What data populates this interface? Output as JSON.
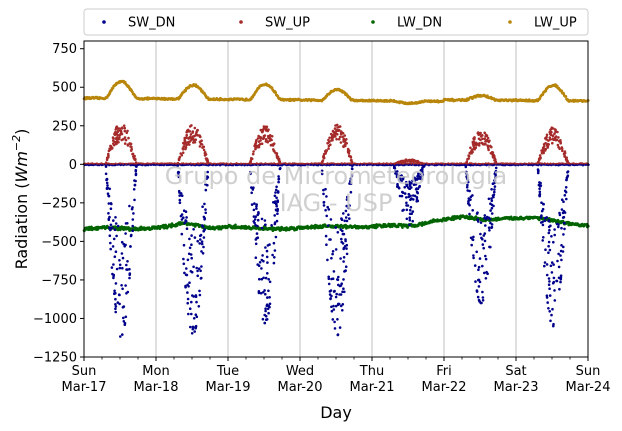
{
  "chart_data": {
    "type": "scatter",
    "watermark_lines": [
      "Grupo de Micrometeorologia",
      "IAG - USP"
    ],
    "xlabel": "Day",
    "ylabel_main": "Radiation (",
    "ylabel_unit_base": "Wm",
    "ylabel_unit_exp": "−2",
    "ylabel_close": ")",
    "ylim": [
      -1250,
      800
    ],
    "xlim": [
      0,
      7
    ],
    "grid": "vertical",
    "legend_placement": "top",
    "zero_line": true,
    "yticks": [
      {
        "value": 750,
        "label": "750"
      },
      {
        "value": 500,
        "label": "500"
      },
      {
        "value": 250,
        "label": "250"
      },
      {
        "value": 0,
        "label": "0"
      },
      {
        "value": -250,
        "label": "−250"
      },
      {
        "value": -500,
        "label": "−500"
      },
      {
        "value": -750,
        "label": "−750"
      },
      {
        "value": -1000,
        "label": "−1000"
      },
      {
        "value": -1250,
        "label": "−1250"
      }
    ],
    "xticks": [
      {
        "value": 0,
        "day": "Sun",
        "date": "Mar-17"
      },
      {
        "value": 1,
        "day": "Mon",
        "date": "Mar-18"
      },
      {
        "value": 2,
        "day": "Tue",
        "date": "Mar-19"
      },
      {
        "value": 3,
        "day": "Wed",
        "date": "Mar-20"
      },
      {
        "value": 4,
        "day": "Thu",
        "date": "Mar-21"
      },
      {
        "value": 5,
        "day": "Fri",
        "date": "Mar-22"
      },
      {
        "value": 6,
        "day": "Sat",
        "date": "Mar-23"
      },
      {
        "value": 7,
        "day": "Sun",
        "date": "Mar-24"
      }
    ],
    "series": [
      {
        "name": "SW_DN",
        "color": "#00008b",
        "daily_peak": [
          -1120,
          -1100,
          -1030,
          -1110,
          -330,
          -900,
          -1050
        ]
      },
      {
        "name": "SW_UP",
        "color": "#a52a2a",
        "daily_peak": [
          260,
          250,
          240,
          260,
          30,
          220,
          230
        ]
      },
      {
        "name": "LW_DN",
        "color": "#006400",
        "baseline": -410,
        "values": [
          -420,
          -410,
          -420,
          -410,
          -380,
          -415,
          -405,
          -415,
          -420,
          -405,
          -400,
          -410,
          -395,
          -400,
          -365,
          -340,
          -360,
          -350,
          -345,
          -380,
          -400
        ]
      },
      {
        "name": "LW_UP",
        "color": "#b8860b",
        "baseline": 430,
        "daily_peak": [
          540,
          520,
          530,
          500,
          415,
          460,
          530
        ]
      }
    ]
  }
}
